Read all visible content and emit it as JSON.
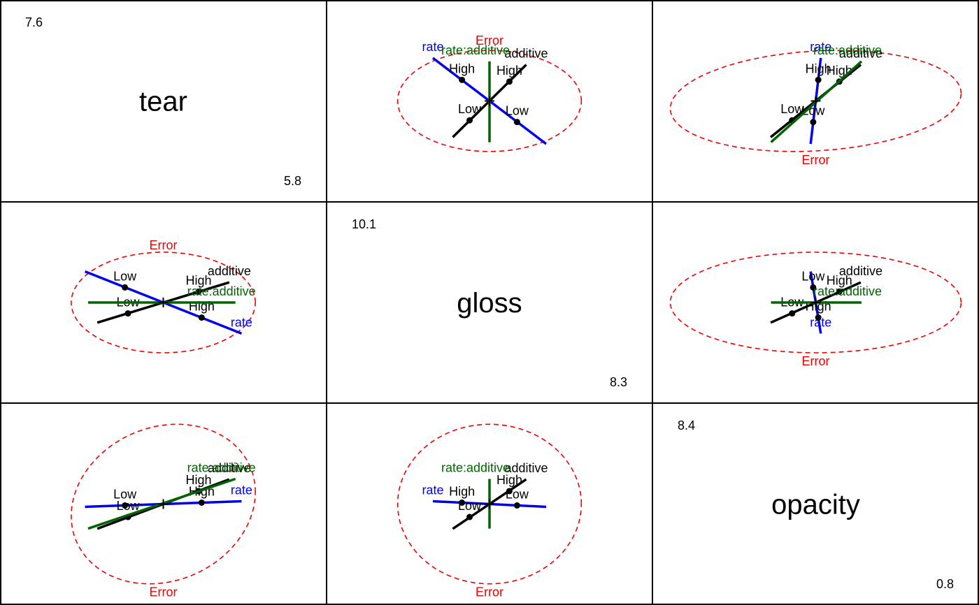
{
  "chart_data": {
    "type": "scatter",
    "variables": [
      "tear",
      "gloss",
      "opacity"
    ],
    "ranges": {
      "tear": {
        "max": "7.6",
        "min": "5.8"
      },
      "gloss": {
        "max": "10.1",
        "min": "8.3"
      },
      "opacity": {
        "max": "8.4",
        "min": "0.8"
      }
    },
    "colors": {
      "error": "#ee0000",
      "rate": "#0000ee",
      "additive": "#000000",
      "interaction": "#006400"
    },
    "ellipse_labels": {
      "error": "Error"
    },
    "effect_labels": {
      "rate": "rate",
      "additive": "additive",
      "interaction": "rate:additive"
    },
    "level_labels": {
      "low": "Low",
      "high": "High"
    },
    "ranges_data_units": {
      "tear": [
        5.8,
        7.6
      ],
      "gloss": [
        8.3,
        10.1
      ],
      "opacity": [
        0.8,
        8.4
      ]
    },
    "effects": {
      "grand_mean": {
        "tear": 6.7,
        "gloss": 9.2,
        "opacity": 4.6
      },
      "rate": {
        "levels": [
          "Low",
          "High"
        ],
        "endpoints": [
          {
            "tear": 6.19,
            "gloss": 9.57,
            "opacity": 4.46
          },
          {
            "tear": 7.21,
            "gloss": 8.83,
            "opacity": 4.74
          }
        ],
        "points": [
          {
            "tear": 6.45,
            "gloss": 9.38,
            "opacity": 4.53
          },
          {
            "tear": 6.95,
            "gloss": 9.02,
            "opacity": 4.67
          }
        ]
      },
      "additive": {
        "levels": [
          "Low",
          "High"
        ],
        "endpoints": [
          {
            "tear": 6.27,
            "gloss": 8.96,
            "opacity": 3.36
          },
          {
            "tear": 7.13,
            "gloss": 9.44,
            "opacity": 5.84
          }
        ],
        "points": [
          {
            "tear": 6.47,
            "gloss": 9.07,
            "opacity": 3.95
          },
          {
            "tear": 6.93,
            "gloss": 9.33,
            "opacity": 5.25
          }
        ]
      },
      "interaction": {
        "endpoints": [
          {
            "tear": 6.21,
            "gloss": 9.2,
            "opacity": 3.37
          },
          {
            "tear": 7.17,
            "gloss": 9.2,
            "opacity": 5.86
          }
        ]
      },
      "error_ellipse": {
        "center": {
          "tear": 6.7,
          "gloss": 9.2,
          "opacity": 4.6
        },
        "spread": {
          "tear": 0.6,
          "gloss": 0.6,
          "opacity": 4.0
        },
        "correlations": {
          "tear_gloss": 0.0,
          "tear_opacity": 0.15,
          "gloss_opacity": 0.0
        }
      }
    }
  }
}
